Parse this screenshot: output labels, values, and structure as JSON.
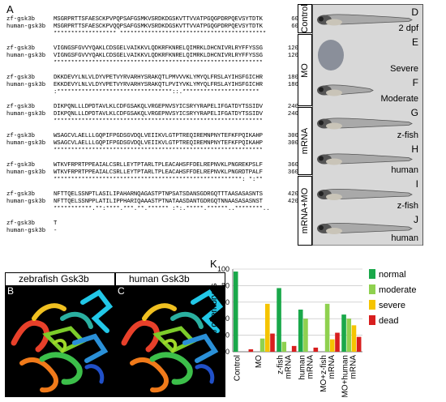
{
  "panels": {
    "A": "A",
    "B": "B",
    "C": "C",
    "D": "D",
    "E": "E",
    "F": "F",
    "G": "G",
    "H": "H",
    "I": "I",
    "J": "J",
    "K": "K"
  },
  "alignment": {
    "blocks": [
      {
        "zf": "MSGRPRTTSFAESCKPVPQPSAFGSMKVSRDKDGSKVTTVVATPGQGPDRPQEVSYTDTK",
        "hu": "MSGRPRTTSFAESCKPVQQPSAFGSMKVSRDKDGSKVTTVVATPGQGPDRPQEVSYTDTK",
        "cons": "****************** ******************************************",
        "n": "60"
      },
      {
        "zf": "VIGNGSFGVVYQAKLCDSGELVAIKKVLQDKRFKNRELQIMRKLDHCNIVRLRYFFYSSG",
        "hu": "VIGNGSFGVVYQAKLCDSGELVAIKKVLQDKRFKNRELQIMRKLDHCNIVRLRYFFYSSG",
        "cons": "************************************************************",
        "n": "120"
      },
      {
        "zf": "DKKDEVYLNLVLDYVPETVYRVARHYSRAKQTLPMVVVKLYMYQLFRSLAYIHSFGICHR",
        "hu": "EKKDEVYLNLVLDYVPETVYRVARHYSRAKQTLPVIYVKLYMYQLFRSLAYIHSFGICHR",
        "cons": ":*********************************::.**********************",
        "n": "180"
      },
      {
        "zf": "DIKPQNLLLDPDTAVLKLCDFGSAKQLVRGEPNVSYICSRYYRAPELIFGATDYTSSIDV",
        "hu": "DIKPQNLLLDPDTAVLKLCDFGSAKQLVRGEPNVSYICSRYYRAPELIFGATDYTSSIDV",
        "cons": "************************************************************",
        "n": "240"
      },
      {
        "zf": "WSAGCVLAELLLGQPIFPGDSGVDQLVEIIKVLGTPTREQIREMNPNYTEFKFPQIKAHP",
        "hu": "WSAGCVLAELLLGQPIFPGDSGVDQLVEIIKVLGTPTREQIREMNPNYTEFKFPQIKAHP",
        "cons": "************************************************************",
        "n": "300"
      },
      {
        "zf": "WTKVFRPRTPPEAIALCSRLLEYTPTARLTPLEACAHSFFDELREPNVKLPNGREKPSLF",
        "hu": "WTKVFRPRTPPEAIALCSRLLEYTPTARLTPLEACAHSFFDELREPNVKLPNGRDTPALF",
        "cons": "******************************************************: *:**",
        "n": "360"
      },
      {
        "zf": "NFTTQELSSNPTLASILIPAHARNQAGASTPTNPSATSDANSGDRGQTTTAASASASNTS",
        "hu": "NFTTQELSSNPPLATILIPPHARIQAAASTPTNATAASDANTGDRGQTNNAASASASNST",
        "cons": "***********.**:****.***.**.****** :*:.*****.******..********..",
        "n": "420"
      },
      {
        "zf": "T",
        "hu": "-",
        "cons": "",
        "n": "421"
      }
    ],
    "zf_name": "zf-gsk3b",
    "hu_name": "human-gsk3b"
  },
  "structures": {
    "zebrafish": "zebrafish Gsk3b",
    "human": "human Gsk3b"
  },
  "embryo_panels": [
    {
      "letter": "D",
      "label": "2 dpf"
    },
    {
      "letter": "E",
      "label": "Severe"
    },
    {
      "letter": "F",
      "label": "Moderate"
    },
    {
      "letter": "G",
      "label": "z-fish"
    },
    {
      "letter": "H",
      "label": "human"
    },
    {
      "letter": "I",
      "label": "z-fish"
    },
    {
      "letter": "J",
      "label": "human"
    }
  ],
  "groups": {
    "control": "Control",
    "mo": "MO",
    "mrna": "mRNA",
    "mrna_mo": "mRNA+MO"
  },
  "chart_data": {
    "type": "bar",
    "ylabel": "% of embryos",
    "ylim": [
      0,
      100
    ],
    "yticks": [
      0,
      20,
      40,
      60,
      80,
      100
    ],
    "categories": [
      "Control",
      "MO",
      "z-fish mRNA",
      "human mRNA",
      "MO+z-fish mRNA",
      "MO+human mRNA"
    ],
    "category_lines": [
      [
        "Control"
      ],
      [
        "MO"
      ],
      [
        "z-fish",
        "mRNA"
      ],
      [
        "human",
        "mRNA"
      ],
      [
        "MO+z-fish",
        "mRNA"
      ],
      [
        "MO+human",
        "mRNA"
      ]
    ],
    "series": [
      {
        "name": "normal",
        "color": "#1aa84a",
        "values": [
          97,
          0,
          77,
          51,
          0,
          45
        ]
      },
      {
        "name": "moderate",
        "color": "#8fd14f",
        "values": [
          0,
          16,
          12,
          40,
          58,
          40
        ]
      },
      {
        "name": "severe",
        "color": "#f5c400",
        "values": [
          0,
          58,
          0,
          0,
          15,
          32
        ]
      },
      {
        "name": "dead",
        "color": "#d81e1e",
        "values": [
          3,
          22,
          7,
          5,
          23,
          18
        ]
      }
    ],
    "legend_position": "top-right"
  }
}
